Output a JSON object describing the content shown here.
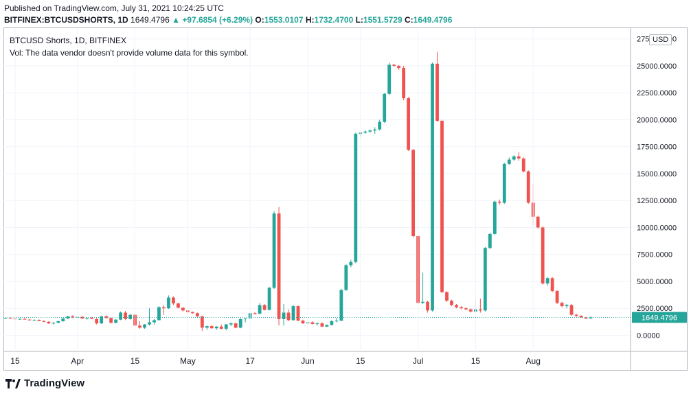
{
  "header": {
    "published": "Published on TradingView.com, July 31, 2021 10:24:25 UTC",
    "symbol": "BITFINEX:BTCUSDSHORTS, 1D",
    "last": "1649.4796",
    "change": "▲ +97.6854 (+6.29%)",
    "o_label": "O:",
    "o": "1553.0107",
    "h_label": "H:",
    "h": "1732.4700",
    "l_label": "L:",
    "l": "1551.5729",
    "c_label": "C:",
    "c": "1649.4796"
  },
  "legend": {
    "title": "BTCUSD Shorts, 1D, BITFINEX",
    "vol": "Vol: The data vendor doesn't provide volume data for this symbol."
  },
  "currency": "USD",
  "price_badge": "1649.4796",
  "brand": "TradingView",
  "colors": {
    "up": "#26a69a",
    "down": "#ef5350",
    "axis_text": "#131722"
  },
  "chart_data": {
    "type": "candlestick",
    "x_ticks": [
      "15",
      "Apr",
      "15",
      "May",
      "17",
      "Jun",
      "15",
      "Jul",
      "15",
      "Aug"
    ],
    "y_ticks": [
      "27500.0000",
      "25000.0000",
      "22500.0000",
      "20000.0000",
      "17500.0000",
      "15000.0000",
      "12500.0000",
      "10000.0000",
      "7500.0000",
      "5000.0000",
      "2500.0000",
      "0.0000"
    ],
    "ylim": [
      -1500,
      28500
    ],
    "last_price": 1649.4796,
    "candles": [
      [
        1550,
        1600,
        1500,
        1580
      ],
      [
        1580,
        1650,
        1520,
        1540
      ],
      [
        1540,
        1580,
        1450,
        1500
      ],
      [
        1500,
        1560,
        1430,
        1520
      ],
      [
        1520,
        1600,
        1480,
        1450
      ],
      [
        1450,
        1500,
        1350,
        1400
      ],
      [
        1400,
        1480,
        1330,
        1420
      ],
      [
        1420,
        1470,
        1300,
        1320
      ],
      [
        1320,
        1380,
        1200,
        1250
      ],
      [
        1250,
        1300,
        1050,
        1100
      ],
      [
        1100,
        1200,
        980,
        1150
      ],
      [
        1150,
        1350,
        1100,
        1300
      ],
      [
        1300,
        1600,
        1250,
        1550
      ],
      [
        1550,
        1800,
        1500,
        1750
      ],
      [
        1750,
        1850,
        1600,
        1650
      ],
      [
        1650,
        1750,
        1550,
        1700
      ],
      [
        1700,
        1800,
        1500,
        1550
      ],
      [
        1550,
        1650,
        1450,
        1600
      ],
      [
        1600,
        1700,
        1550,
        1500
      ],
      [
        1500,
        1600,
        1000,
        1100
      ],
      [
        1100,
        1800,
        1050,
        1750
      ],
      [
        1750,
        1850,
        1550,
        1600
      ],
      [
        1600,
        1650,
        1100,
        1150
      ],
      [
        1150,
        1500,
        1100,
        1450
      ],
      [
        1450,
        2200,
        1400,
        2100
      ],
      [
        2100,
        2250,
        1400,
        1500
      ],
      [
        1500,
        1950,
        1450,
        1900
      ],
      [
        1900,
        2000,
        800,
        900
      ],
      [
        900,
        1300,
        600,
        700
      ],
      [
        700,
        1050,
        600,
        1000
      ],
      [
        1000,
        2500,
        900,
        1200
      ],
      [
        1200,
        1500,
        1000,
        1400
      ],
      [
        1400,
        2700,
        1350,
        2600
      ],
      [
        2600,
        2800,
        1900,
        2500
      ],
      [
        2500,
        3700,
        2450,
        3500
      ],
      [
        3500,
        3600,
        2800,
        2950
      ],
      [
        2950,
        3000,
        2500,
        2550
      ],
      [
        2550,
        2600,
        2200,
        2300
      ],
      [
        2300,
        2350,
        2100,
        2150
      ],
      [
        2150,
        2200,
        2000,
        2050
      ],
      [
        2050,
        2100,
        1700,
        1750
      ],
      [
        1750,
        1800,
        400,
        700
      ],
      [
        700,
        900,
        500,
        850
      ],
      [
        850,
        950,
        600,
        650
      ],
      [
        650,
        850,
        500,
        800
      ],
      [
        800,
        1000,
        550,
        600
      ],
      [
        600,
        1050,
        450,
        1000
      ],
      [
        1000,
        1200,
        850,
        1100
      ],
      [
        1100,
        1150,
        650,
        700
      ],
      [
        700,
        1600,
        650,
        1500
      ],
      [
        1500,
        1600,
        1200,
        1550
      ],
      [
        1550,
        2100,
        1500,
        2050
      ],
      [
        2050,
        2150,
        1900,
        2000
      ],
      [
        2000,
        3000,
        1950,
        2800
      ],
      [
        2800,
        2900,
        2300,
        2350
      ],
      [
        2350,
        4500,
        2300,
        4400
      ],
      [
        4400,
        11500,
        4300,
        11300
      ],
      [
        11300,
        11900,
        900,
        1500
      ],
      [
        1500,
        2900,
        900,
        2100
      ],
      [
        2100,
        2400,
        1300,
        1400
      ],
      [
        1400,
        2800,
        1350,
        2700
      ],
      [
        2700,
        2750,
        1300,
        1350
      ],
      [
        1350,
        1450,
        1050,
        1100
      ],
      [
        1100,
        1300,
        1000,
        1200
      ],
      [
        1200,
        1300,
        1000,
        1050
      ],
      [
        1050,
        1200,
        900,
        1100
      ],
      [
        1100,
        1200,
        750,
        800
      ],
      [
        800,
        1000,
        750,
        950
      ],
      [
        950,
        1400,
        900,
        1300
      ],
      [
        1300,
        1600,
        1200,
        1350
      ],
      [
        1350,
        4300,
        1300,
        4200
      ],
      [
        4200,
        6600,
        4100,
        6500
      ],
      [
        6500,
        7000,
        6300,
        6800
      ],
      [
        6800,
        18800,
        6700,
        18700
      ],
      [
        18700,
        18900,
        18400,
        18800
      ],
      [
        18800,
        19000,
        18700,
        18900
      ],
      [
        18900,
        19100,
        18800,
        19000
      ],
      [
        19000,
        19300,
        18700,
        19100
      ],
      [
        19100,
        20000,
        19000,
        19800
      ],
      [
        19800,
        22500,
        19700,
        22400
      ],
      [
        22400,
        25300,
        22300,
        25100
      ],
      [
        25100,
        25200,
        24900,
        25000
      ],
      [
        25000,
        25100,
        24600,
        24800
      ],
      [
        24800,
        25000,
        21800,
        22000
      ],
      [
        22000,
        22100,
        17100,
        17200
      ],
      [
        17200,
        17300,
        9100,
        9200
      ],
      [
        9200,
        9300,
        2900,
        3000
      ],
      [
        3000,
        5800,
        2900,
        3100
      ],
      [
        3100,
        3200,
        2100,
        2300
      ],
      [
        2300,
        25300,
        2200,
        25200
      ],
      [
        25200,
        26300,
        19800,
        19900
      ],
      [
        19900,
        20000,
        3900,
        4000
      ],
      [
        4000,
        4100,
        3100,
        3200
      ],
      [
        3200,
        3300,
        2700,
        2800
      ],
      [
        2800,
        2900,
        2500,
        2600
      ],
      [
        2600,
        2700,
        2400,
        2500
      ],
      [
        2500,
        2600,
        2300,
        2400
      ],
      [
        2400,
        2500,
        2100,
        2200
      ],
      [
        2200,
        3300,
        2100,
        2400
      ],
      [
        2400,
        3400,
        2100,
        2300
      ],
      [
        2300,
        8200,
        2200,
        8100
      ],
      [
        8100,
        9500,
        8000,
        9400
      ],
      [
        9400,
        12500,
        9300,
        12400
      ],
      [
        12400,
        12600,
        12100,
        12300
      ],
      [
        12300,
        16000,
        12200,
        15900
      ],
      [
        15900,
        16500,
        15800,
        16300
      ],
      [
        16300,
        16700,
        16200,
        16600
      ],
      [
        16600,
        17000,
        16200,
        16400
      ],
      [
        16400,
        16500,
        15100,
        15200
      ],
      [
        15200,
        15300,
        12200,
        12300
      ],
      [
        12300,
        14000,
        10200,
        11000
      ],
      [
        11000,
        11100,
        9900,
        10000
      ],
      [
        10000,
        10100,
        4700,
        4800
      ],
      [
        4800,
        5400,
        4600,
        5300
      ],
      [
        5300,
        5400,
        4000,
        4100
      ],
      [
        4100,
        4200,
        2900,
        3000
      ],
      [
        3000,
        3100,
        2600,
        2700
      ],
      [
        2700,
        2900,
        2500,
        2800
      ],
      [
        2800,
        2900,
        1800,
        1900
      ],
      [
        1900,
        2000,
        1700,
        1800
      ],
      [
        1800,
        1850,
        1600,
        1650
      ],
      [
        1650,
        1700,
        1500,
        1550
      ],
      [
        1550,
        1750,
        1550,
        1650
      ]
    ]
  }
}
